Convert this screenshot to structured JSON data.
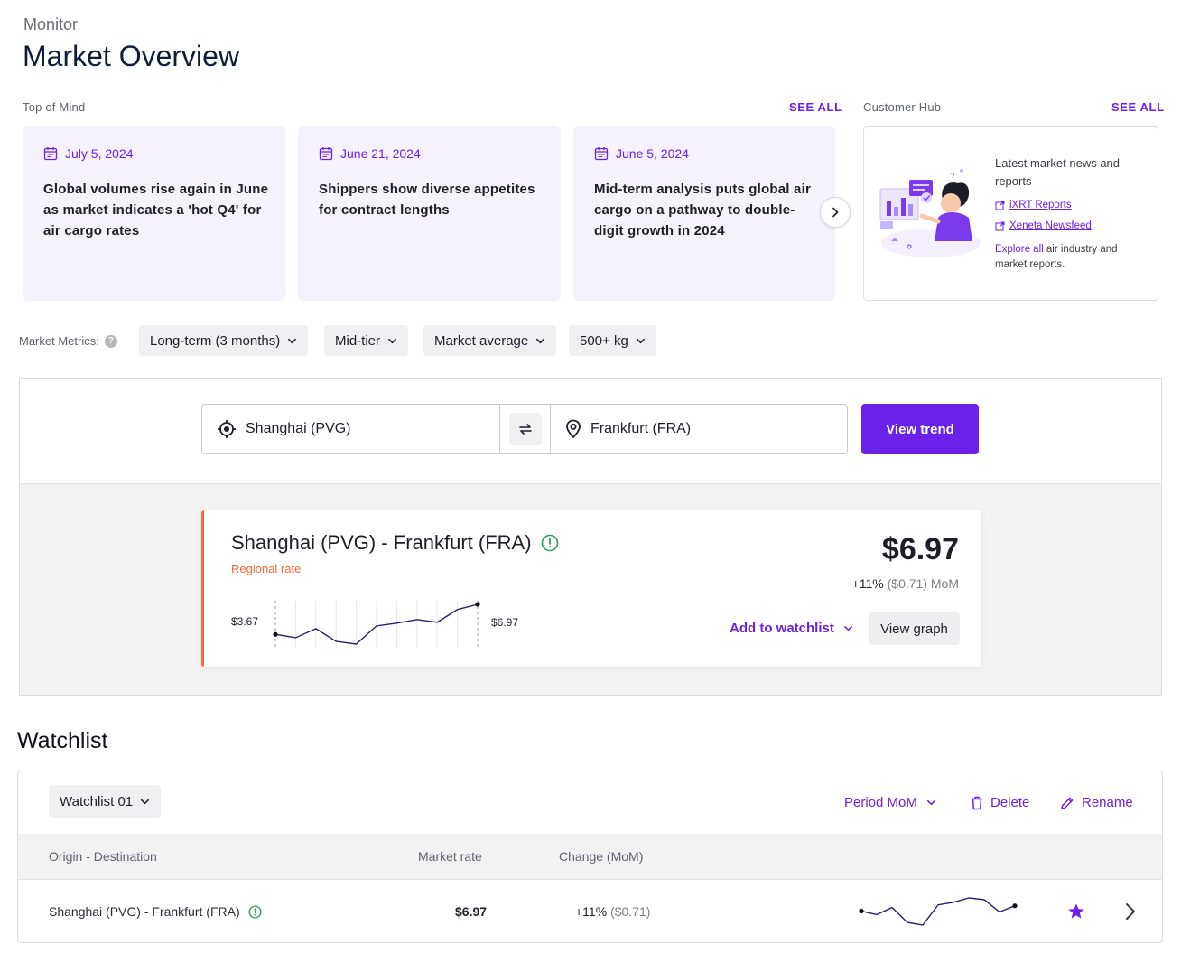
{
  "header": {
    "eyebrow": "Monitor",
    "title": "Market Overview"
  },
  "top_of_mind": {
    "label": "Top of Mind",
    "see_all": "SEE ALL",
    "cards": [
      {
        "date": "July 5, 2024",
        "text": "Global volumes rise again in June as market indicates a 'hot Q4' for air cargo rates"
      },
      {
        "date": "June 21, 2024",
        "text": "Shippers show diverse appetites for contract lengths"
      },
      {
        "date": "June 5, 2024",
        "text": "Mid-term analysis puts global air cargo on a pathway to double-digit growth in 2024"
      }
    ],
    "next_icon": "chevron-right-icon"
  },
  "customer_hub": {
    "label": "Customer Hub",
    "see_all": "SEE ALL",
    "heading": "Latest market news and reports",
    "links": [
      "iXRT Reports",
      "Xeneta Newsfeed"
    ],
    "explore_link": "Explore all",
    "explore_rest": " air industry and market reports."
  },
  "market_metrics": {
    "label": "Market Metrics:",
    "filters": [
      "Long-term (3 months)",
      "Mid-tier",
      "Market average",
      "500+ kg"
    ]
  },
  "search": {
    "origin": "Shanghai (PVG)",
    "destination": "Frankfurt (FRA)",
    "button": "View trend"
  },
  "result": {
    "route": "Shanghai (PVG) - Frankfurt (FRA)",
    "rate_type": "Regional rate",
    "price": "$6.97",
    "change_pct": "+11%",
    "change_abs": "($0.71) MoM",
    "spark_start": "$3.67",
    "spark_end": "$6.97",
    "add_watchlist": "Add to watchlist",
    "view_graph": "View graph",
    "sparkline": [
      3.67,
      3.3,
      4.3,
      2.9,
      2.6,
      4.6,
      4.9,
      5.3,
      5.0,
      6.4,
      6.97
    ]
  },
  "watchlist": {
    "title": "Watchlist",
    "selector": "Watchlist 01",
    "period": "Period MoM",
    "delete": "Delete",
    "rename": "Rename",
    "columns": [
      "Origin - Destination",
      "Market rate",
      "Change (MoM)"
    ],
    "rows": [
      {
        "route": "Shanghai (PVG) - Frankfurt (FRA)",
        "rate": "$6.97",
        "change_pct": "+11%",
        "change_abs": "($0.71)",
        "sparkline": [
          5.0,
          4.6,
          5.4,
          3.7,
          3.4,
          5.7,
          6.0,
          6.5,
          6.3,
          4.9,
          5.6
        ]
      }
    ]
  },
  "colors": {
    "accent": "#6b21e8",
    "regional": "#f26b3a",
    "info_green": "#2f9e58"
  }
}
